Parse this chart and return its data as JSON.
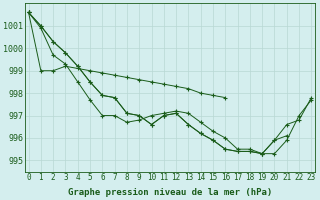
{
  "bg_color": "#d4eeee",
  "grid_color": "#b8d8d4",
  "line_color": "#1a5c1a",
  "marker_color": "#1a5c1a",
  "xlabel": "Graphe pression niveau de la mer (hPa)",
  "xlabel_fontsize": 6.5,
  "tick_fontsize": 5.5,
  "ytick_fontsize": 6,
  "ylim": [
    994.5,
    1002.0
  ],
  "xlim": [
    -0.3,
    23.3
  ],
  "yticks": [
    995,
    996,
    997,
    998,
    999,
    1000,
    1001
  ],
  "xticks": [
    0,
    1,
    2,
    3,
    4,
    5,
    6,
    7,
    8,
    9,
    10,
    11,
    12,
    13,
    14,
    15,
    16,
    17,
    18,
    19,
    20,
    21,
    22,
    23
  ],
  "series": [
    [
      1001.6,
      1001.0,
      1000.3,
      999.8,
      999.2,
      998.5,
      997.9,
      997.8,
      997.1,
      997.0,
      996.6,
      997.0,
      997.1,
      996.6,
      996.2,
      995.9,
      995.5,
      995.4,
      995.4,
      995.3,
      995.9,
      996.1,
      null,
      null
    ],
    [
      1001.6,
      1000.9,
      999.7,
      999.3,
      998.5,
      997.7,
      997.0,
      997.0,
      996.7,
      996.8,
      997.0,
      997.1,
      997.2,
      997.1,
      996.7,
      996.3,
      996.0,
      995.5,
      995.5,
      995.3,
      995.3,
      995.9,
      997.0,
      997.7
    ],
    [
      1001.6,
      1001.0,
      1000.3,
      999.8,
      999.2,
      998.5,
      997.9,
      997.8,
      997.1,
      997.0,
      996.6,
      997.0,
      997.1,
      996.6,
      996.2,
      995.9,
      995.5,
      995.4,
      995.4,
      995.3,
      995.9,
      996.6,
      996.8,
      997.8
    ],
    [
      1001.6,
      999.0,
      999.0,
      999.2,
      999.1,
      999.0,
      998.9,
      998.8,
      998.7,
      998.6,
      998.5,
      998.4,
      998.3,
      998.2,
      998.0,
      997.9,
      997.8,
      null,
      null,
      null,
      null,
      null,
      null,
      null
    ]
  ]
}
